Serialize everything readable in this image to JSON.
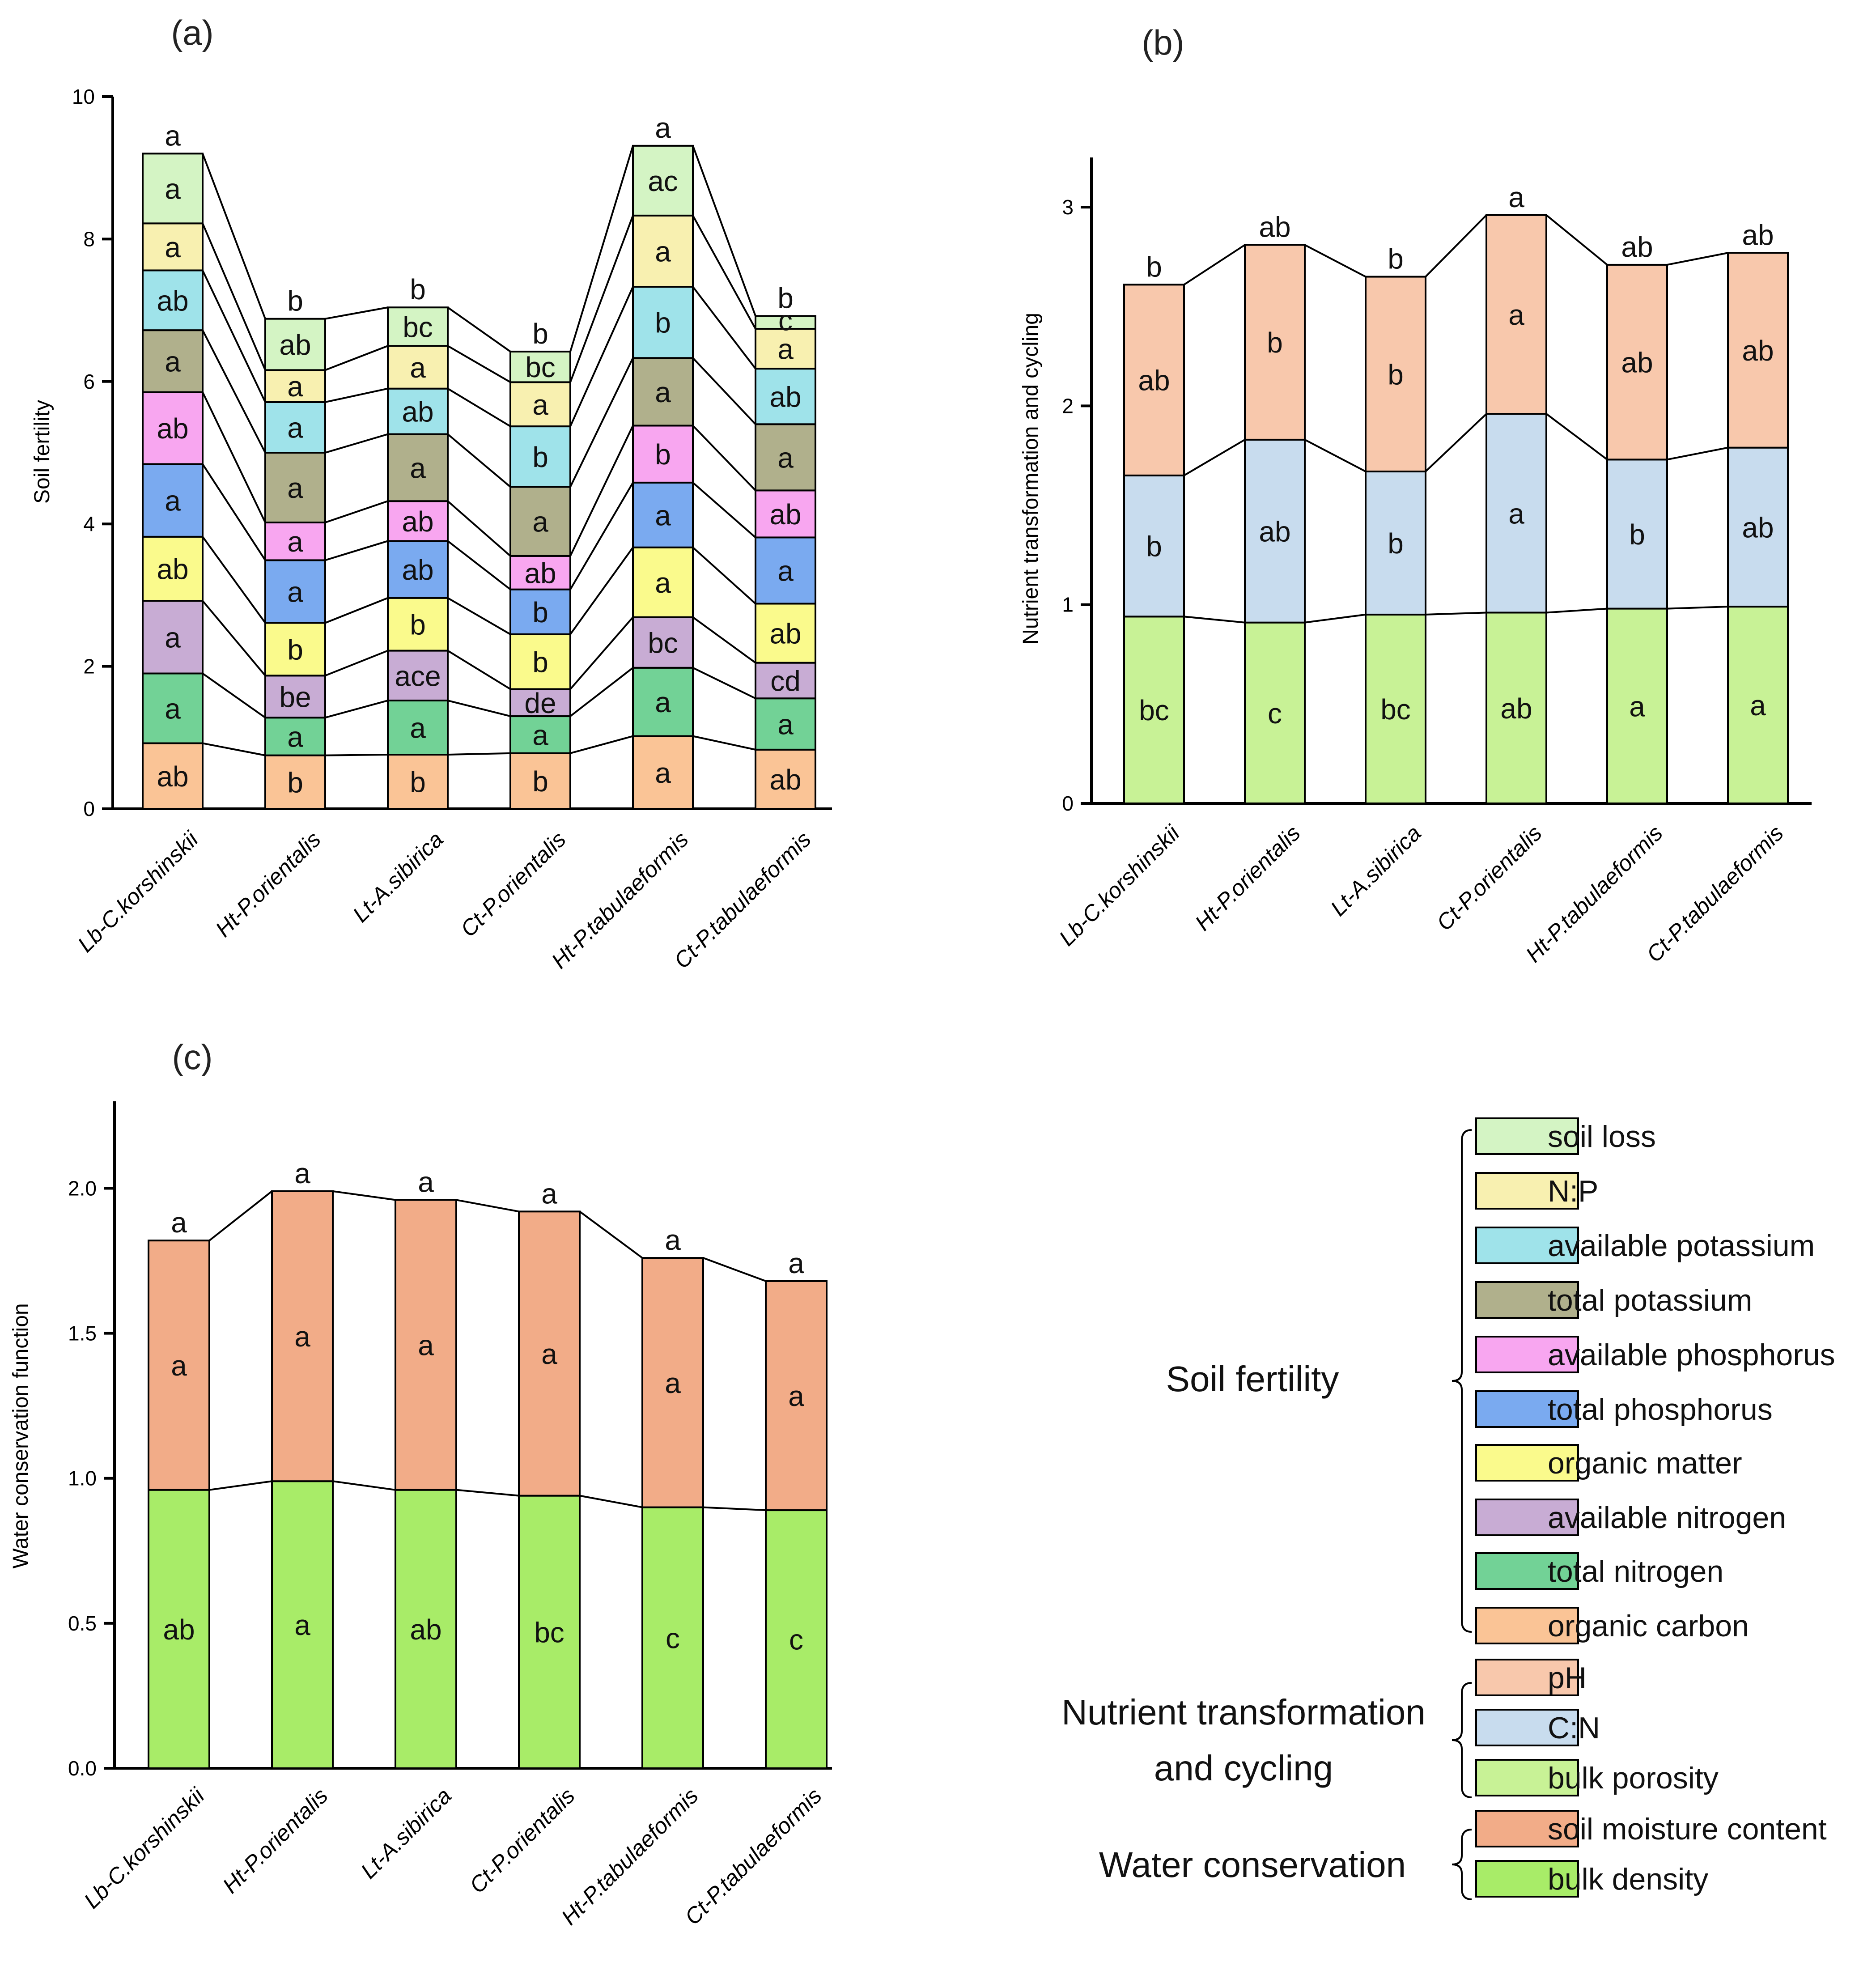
{
  "categories": [
    "Lb-C.korshinskii",
    "Ht-P.orientalis",
    "Lt-A.sibirica",
    "Ct-P.orientalis",
    "Ht-P.tabulaeformis",
    "Ct-P.tabulaeformis"
  ],
  "colors": {
    "soil loss": "#d4f4c4",
    "N:P": "#f8f0b0",
    "available potassium": "#9fe3ea",
    "total potassium": "#b0b08c",
    "available phosphorus": "#f8a6f0",
    "total phosphorus": "#7aaaf0",
    "organic matter": "#fafa8c",
    "available nitrogen": "#c8acd4",
    "total nitrogen": "#72d296",
    "organic carbon": "#fac496",
    "pH": "#f8c8ac",
    "C:N": "#c8dcee",
    "bulk porosity": "#c8f296",
    "soil moisture content": "#f2ac88",
    "bulk density": "#a8ec68"
  },
  "chart_data": [
    {
      "panel": "(a)",
      "type": "bar",
      "stacked": true,
      "title": "",
      "xlabel": "",
      "ylabel": "Soil  fertility",
      "ylim": [
        0,
        10
      ],
      "yticks": [
        0,
        2,
        4,
        6,
        8,
        10
      ],
      "ytick_labels": [
        "0",
        "2",
        "4",
        "6",
        "8",
        "10"
      ],
      "categories": [
        "Lb-C.korshinskii",
        "Ht-P.orientalis",
        "Lt-A.sibirica",
        "Ct-P.orientalis",
        "Ht-P.tabulaeformis",
        "Ct-P.tabulaeformis"
      ],
      "series": [
        {
          "name": "organic carbon",
          "values": [
            0.92,
            0.75,
            0.76,
            0.78,
            1.02,
            0.83
          ],
          "letters": [
            "ab",
            "b",
            "b",
            "b",
            "a",
            "ab"
          ]
        },
        {
          "name": "total nitrogen",
          "values": [
            0.98,
            0.53,
            0.76,
            0.52,
            0.96,
            0.72
          ],
          "letters": [
            "a",
            "a",
            "a",
            "a",
            "a",
            "a"
          ]
        },
        {
          "name": "available nitrogen",
          "values": [
            1.02,
            0.59,
            0.7,
            0.38,
            0.71,
            0.5
          ],
          "letters": [
            "a",
            "be",
            "ace",
            "de",
            "bc",
            "cd"
          ]
        },
        {
          "name": "organic matter",
          "values": [
            0.9,
            0.74,
            0.74,
            0.77,
            0.98,
            0.83
          ],
          "letters": [
            "ab",
            "b",
            "b",
            "b",
            "a",
            "ab"
          ]
        },
        {
          "name": "total phosphorus",
          "values": [
            1.02,
            0.88,
            0.8,
            0.63,
            0.91,
            0.93
          ],
          "letters": [
            "a",
            "a",
            "ab",
            "b",
            "a",
            "a"
          ]
        },
        {
          "name": "available phosphorus",
          "values": [
            1.01,
            0.53,
            0.56,
            0.47,
            0.8,
            0.66
          ],
          "letters": [
            "ab",
            "a",
            "ab",
            "ab",
            "b",
            "ab"
          ]
        },
        {
          "name": "total potassium",
          "values": [
            0.87,
            0.98,
            0.94,
            0.97,
            0.95,
            0.93
          ],
          "letters": [
            "a",
            "a",
            "a",
            "a",
            "a",
            "a"
          ]
        },
        {
          "name": "available potassium",
          "values": [
            0.84,
            0.71,
            0.64,
            0.85,
            1.0,
            0.78
          ],
          "letters": [
            "ab",
            "a",
            "ab",
            "b",
            "b",
            "ab"
          ]
        },
        {
          "name": "N:P",
          "values": [
            0.66,
            0.45,
            0.6,
            0.62,
            1.0,
            0.56
          ],
          "letters": [
            "a",
            "a",
            "a",
            "a",
            "a",
            "a"
          ]
        },
        {
          "name": "soil loss",
          "values": [
            0.98,
            0.72,
            0.54,
            0.43,
            0.98,
            0.18
          ],
          "letters": [
            "a",
            "ab",
            "bc",
            "bc",
            "ac",
            "c"
          ]
        }
      ],
      "totals": [
        9.2,
        6.88,
        7.04,
        6.42,
        9.31,
        6.92
      ],
      "top_letters": [
        "a",
        "b",
        "b",
        "b",
        "a",
        "b"
      ]
    },
    {
      "panel": "(b)",
      "type": "bar",
      "stacked": true,
      "title": "",
      "xlabel": "",
      "ylabel": "Nutrient transformation and cycling",
      "ylim": [
        0,
        3.25
      ],
      "yticks": [
        0,
        1,
        2,
        3
      ],
      "ytick_labels": [
        "0",
        "1",
        "2",
        "3"
      ],
      "categories": [
        "Lb-C.korshinskii",
        "Ht-P.orientalis",
        "Lt-A.sibirica",
        "Ct-P.orientalis",
        "Ht-P.tabulaeformis",
        "Ct-P.tabulaeformis"
      ],
      "series": [
        {
          "name": "bulk porosity",
          "values": [
            0.94,
            0.91,
            0.95,
            0.96,
            0.98,
            0.99
          ],
          "letters": [
            "bc",
            "c",
            "bc",
            "ab",
            "a",
            "a"
          ]
        },
        {
          "name": "C:N",
          "values": [
            0.71,
            0.92,
            0.72,
            1.0,
            0.75,
            0.8
          ],
          "letters": [
            "b",
            "ab",
            "b",
            "a",
            "b",
            "ab"
          ]
        },
        {
          "name": "pH",
          "values": [
            0.96,
            0.98,
            0.98,
            1.0,
            0.98,
            0.98
          ],
          "letters": [
            "ab",
            "b",
            "b",
            "a",
            "ab",
            "ab"
          ]
        }
      ],
      "totals": [
        2.61,
        2.81,
        2.65,
        2.96,
        2.71,
        2.77
      ],
      "top_letters": [
        "b",
        "ab",
        "b",
        "a",
        "ab",
        "ab"
      ]
    },
    {
      "panel": "(c)",
      "type": "bar",
      "stacked": true,
      "title": "",
      "xlabel": "",
      "ylabel": "Water conservation function",
      "ylim": [
        0,
        2.3
      ],
      "yticks": [
        0,
        0.5,
        1.0,
        1.5,
        2.0
      ],
      "ytick_labels": [
        "0.0",
        "0.5",
        "1.0",
        "1.5",
        "2.0"
      ],
      "categories": [
        "Lb-C.korshinskii",
        "Ht-P.orientalis",
        "Lt-A.sibirica",
        "Ct-P.orientalis",
        "Ht-P.tabulaeformis",
        "Ct-P.tabulaeformis"
      ],
      "series": [
        {
          "name": "bulk density",
          "values": [
            0.96,
            0.99,
            0.96,
            0.94,
            0.9,
            0.89
          ],
          "letters": [
            "ab",
            "a",
            "ab",
            "bc",
            "c",
            "c"
          ]
        },
        {
          "name": "soil moisture content",
          "values": [
            0.86,
            1.0,
            1.0,
            0.98,
            0.86,
            0.79
          ],
          "letters": [
            "a",
            "a",
            "a",
            "a",
            "a",
            "a"
          ]
        }
      ],
      "totals": [
        1.82,
        1.99,
        1.96,
        1.92,
        1.76,
        1.68
      ],
      "top_letters": [
        "a",
        "a",
        "a",
        "a",
        "a",
        "a"
      ]
    }
  ],
  "legend": {
    "groups": [
      {
        "label": "Soil fertility",
        "items": [
          "soil loss",
          "N:P",
          "available potassium",
          "total potassium",
          "available phosphorus",
          "total phosphorus",
          "organic matter",
          "available nitrogen",
          "total nitrogen",
          "organic carbon"
        ]
      },
      {
        "label_line1": "Nutrient transformation",
        "label_line2": "and cycling",
        "items": [
          "pH",
          "C:N",
          "bulk porosity"
        ]
      },
      {
        "label": "Water conservation",
        "items": [
          "soil moisture content",
          "bulk density"
        ]
      }
    ]
  }
}
